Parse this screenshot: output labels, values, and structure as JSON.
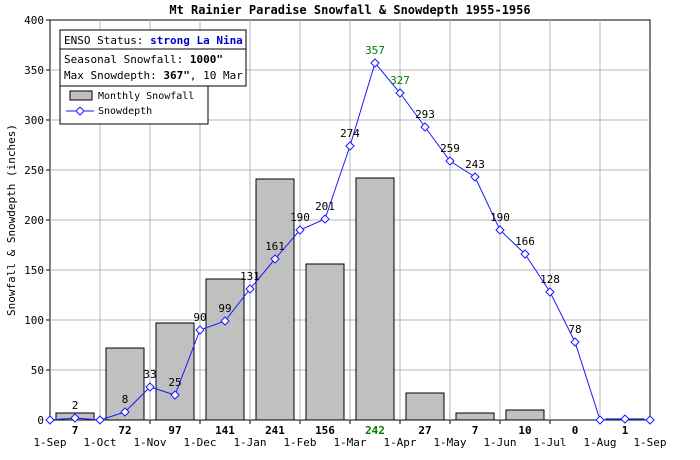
{
  "chart_data": {
    "type": "bar+line",
    "title": "Mt Rainier Paradise Snowfall & Snowdepth 1955-1956",
    "ylabel": "Snowfall & Snowdepth (inches)",
    "xlabel": "",
    "ylim": [
      0,
      400
    ],
    "yticks": [
      0,
      50,
      100,
      150,
      200,
      250,
      300,
      350,
      400
    ],
    "grid": true,
    "x_tick_labels": [
      "1-Sep",
      "1-Oct",
      "1-Nov",
      "1-Dec",
      "1-Jan",
      "1-Feb",
      "1-Mar",
      "1-Apr",
      "1-May",
      "1-Jun",
      "1-Jul",
      "1-Aug",
      "1-Sep"
    ],
    "info_box": {
      "enso_label": "ENSO Status: ",
      "enso_value": "strong La Nina",
      "seasonal_label": "Seasonal Snowfall: ",
      "seasonal_value": "1000\"",
      "maxdepth_label": "Max Snowdepth: ",
      "maxdepth_value": "367\"",
      "maxdepth_date": ", 10 Mar"
    },
    "legend": {
      "position": "top-left",
      "entries": [
        "Monthly Snowfall",
        "Snowdepth"
      ]
    },
    "colors": {
      "bar_fill": "#c0c0c0",
      "line": "#1a1aff",
      "grid": "#b4b4b4",
      "enso": "#0000cc",
      "highlight": "#008000"
    },
    "monthly_snowfall": {
      "months": [
        "Sep",
        "Oct",
        "Nov",
        "Dec",
        "Jan",
        "Feb",
        "Mar",
        "Apr",
        "May",
        "Jun",
        "Jul",
        "Aug"
      ],
      "values": [
        7,
        72,
        97,
        141,
        241,
        156,
        242,
        27,
        7,
        10,
        0,
        1
      ],
      "labels": [
        "7",
        "72",
        "97",
        "141",
        "241",
        "156",
        "242",
        "27",
        "7",
        "10",
        "0",
        "1"
      ],
      "highlight_index": 6
    },
    "snowdepth": {
      "x_months": [
        0,
        0.5,
        1,
        1.5,
        2,
        2.5,
        3,
        3.5,
        4,
        4.5,
        5,
        5.5,
        6,
        6.5,
        7,
        7.5,
        8,
        8.5,
        9,
        9.5,
        10,
        10.5,
        11,
        11.5,
        12
      ],
      "values": [
        0,
        2,
        0,
        8,
        33,
        25,
        90,
        99,
        131,
        161,
        190,
        201,
        274,
        357,
        327,
        293,
        259,
        243,
        190,
        166,
        128,
        78,
        0,
        1,
        0
      ],
      "labels": [
        "",
        "2",
        "",
        "8",
        "33",
        "25",
        "90",
        "99",
        "131",
        "161",
        "190",
        "201",
        "274",
        "357",
        "327",
        "293",
        "259",
        "243",
        "190",
        "166",
        "128",
        "78",
        "",
        "",
        ""
      ],
      "highlight_indices": [
        13,
        14
      ]
    }
  }
}
